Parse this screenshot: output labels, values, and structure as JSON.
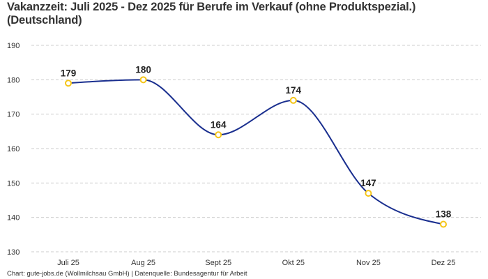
{
  "chart_data": {
    "type": "line",
    "title": "Vakanzzeit: Juli 2025 - Dez 2025 für Berufe im Verkauf (ohne Produktspezial.) (Deutschland)",
    "categories": [
      "Juli 25",
      "Aug 25",
      "Sept 25",
      "Okt 25",
      "Nov 25",
      "Dez 25"
    ],
    "values": [
      179,
      180,
      164,
      174,
      147,
      138
    ],
    "ylim": [
      130,
      190
    ],
    "yticks": [
      130,
      140,
      150,
      160,
      170,
      180,
      190
    ],
    "grid": true,
    "data_labels": true,
    "curve": "smooth",
    "colors": {
      "line": "#1a2f8f",
      "marker": "#f5c518",
      "grid": "#cccccc"
    }
  },
  "footer": "Chart: gute-jobs.de (Wollmilchsau GmbH) | Datenquelle: Bundesagentur für Arbeit"
}
